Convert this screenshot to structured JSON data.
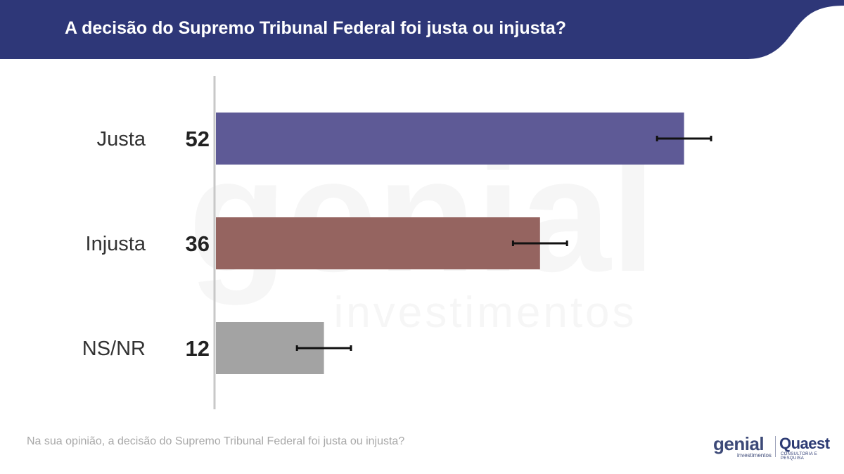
{
  "header": {
    "title": "A decisão do Supremo Tribunal Federal foi justa ou injusta?",
    "color": "#2e3778"
  },
  "chart_data": {
    "type": "bar",
    "orientation": "horizontal",
    "categories": [
      "Justa",
      "Injusta",
      "NS/NR"
    ],
    "values": [
      52,
      36,
      12
    ],
    "value_labels": [
      "52",
      "36",
      "12"
    ],
    "error_margin": 3,
    "colors": [
      "#5e5a96",
      "#956460",
      "#a3a3a3"
    ],
    "xlim": [
      0,
      60
    ],
    "grid": false,
    "legend": "none"
  },
  "footer": {
    "question": "Na sua opinião, a decisão do Supremo Tribunal Federal foi justa ou injusta?"
  },
  "watermark": {
    "brand": "genial",
    "sub": "investimentos"
  },
  "logos": {
    "genial": "genial",
    "genial_sub": "investimentos",
    "quaest": "Quaest",
    "quaest_sub": "CONSULTORIA E PESQUISA"
  }
}
